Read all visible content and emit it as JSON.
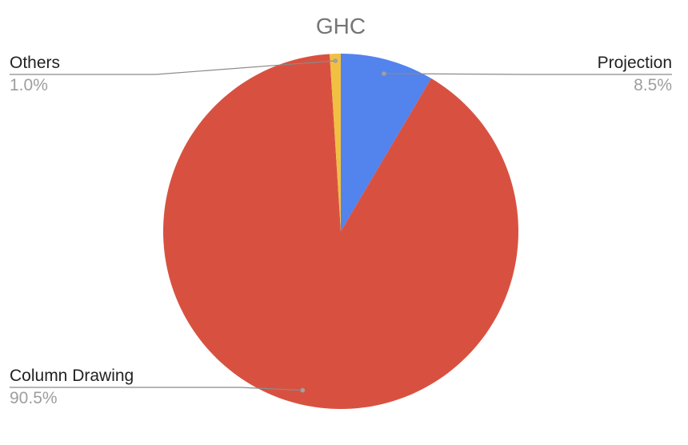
{
  "chart_data": {
    "type": "pie",
    "title": "GHC",
    "slices": [
      {
        "label": "Projection",
        "value": 8.5,
        "display": "8.5%",
        "color": "#5383EC"
      },
      {
        "label": "Column Drawing",
        "value": 90.5,
        "display": "90.5%",
        "color": "#D85140"
      },
      {
        "label": "Others",
        "value": 1.0,
        "display": "1.0%",
        "color": "#F1BF42"
      }
    ],
    "start_angle_deg": 0,
    "direction": "clockwise",
    "legend": "none",
    "labels_style": "outside-with-leader-lines"
  }
}
